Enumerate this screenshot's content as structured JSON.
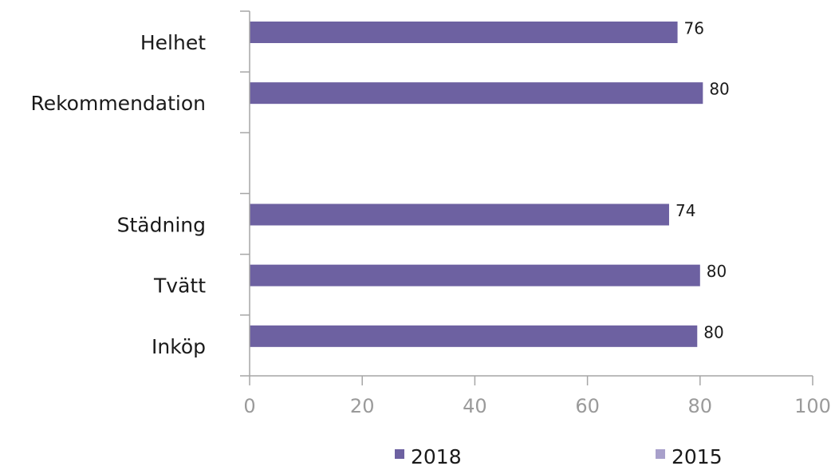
{
  "chart_data": {
    "type": "bar",
    "orientation": "horizontal",
    "categories": [
      "Helhet",
      "Rekommendation",
      "",
      "Städning",
      "Tvätt",
      "Inköp"
    ],
    "series": [
      {
        "name": "2018",
        "values": [
          76,
          80.5,
          null,
          74.5,
          80,
          79.5
        ],
        "labels": [
          "76",
          "80",
          "",
          "74",
          "80",
          "80"
        ]
      },
      {
        "name": "2015",
        "values": [
          0,
          0,
          null,
          0,
          0,
          0
        ],
        "labels": [
          "",
          "",
          "",
          "",
          "",
          ""
        ]
      }
    ],
    "xlim": [
      0,
      100
    ],
    "xticks": [
      "0",
      "20",
      "40",
      "60",
      "80",
      "100"
    ],
    "grid": false,
    "legend": "bottom",
    "colors": {
      "2018": "#6d61a1",
      "2015": "#a8a0cb",
      "axis": "#a6a6a6"
    }
  }
}
